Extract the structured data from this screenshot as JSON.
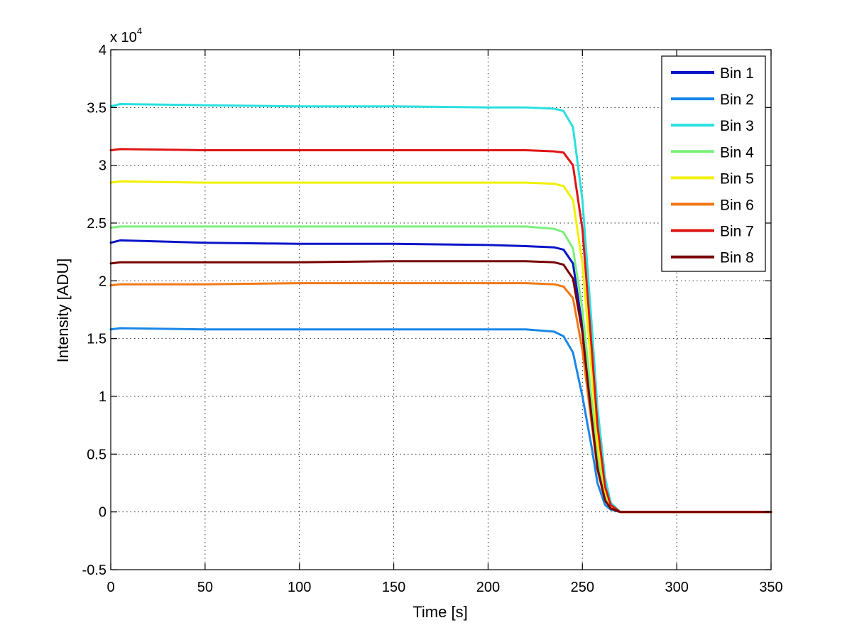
{
  "chart_data": {
    "type": "line",
    "title": "",
    "xlabel": "Time [s]",
    "ylabel": "Intensity [ADU]",
    "y_multiplier": "x 10",
    "y_multiplier_exponent": "4",
    "xlim": [
      0,
      350
    ],
    "ylim": [
      -0.5,
      4
    ],
    "xticks": [
      0,
      50,
      100,
      150,
      200,
      250,
      300,
      350
    ],
    "yticks": [
      -0.5,
      0,
      0.5,
      1,
      1.5,
      2,
      2.5,
      3,
      3.5,
      4
    ],
    "xtick_labels": [
      "0",
      "50",
      "100",
      "150",
      "200",
      "250",
      "300",
      "350"
    ],
    "ytick_labels": [
      "-0.5",
      "0",
      "0.5",
      "1",
      "1.5",
      "2",
      "2.5",
      "3",
      "3.5",
      "4"
    ],
    "grid": true,
    "legend_position": "top-right",
    "x": [
      0,
      5,
      50,
      100,
      150,
      200,
      220,
      235,
      240,
      245,
      250,
      255,
      258,
      262,
      265,
      270,
      300,
      350
    ],
    "series": [
      {
        "name": "Bin 1",
        "color": "#0a14c8",
        "values": [
          2.33,
          2.35,
          2.33,
          2.32,
          2.32,
          2.31,
          2.3,
          2.29,
          2.27,
          2.15,
          1.6,
          0.8,
          0.4,
          0.12,
          0.03,
          0.0,
          0.0,
          0.0
        ]
      },
      {
        "name": "Bin 2",
        "color": "#1a86e8",
        "values": [
          1.58,
          1.59,
          1.58,
          1.58,
          1.58,
          1.58,
          1.58,
          1.56,
          1.52,
          1.38,
          1.0,
          0.55,
          0.25,
          0.06,
          0.02,
          0.0,
          0.0,
          0.0
        ]
      },
      {
        "name": "Bin 3",
        "color": "#2ae0e0",
        "values": [
          3.51,
          3.53,
          3.52,
          3.51,
          3.51,
          3.5,
          3.5,
          3.49,
          3.47,
          3.33,
          2.7,
          1.6,
          0.9,
          0.3,
          0.08,
          0.0,
          0.0,
          0.0
        ]
      },
      {
        "name": "Bin 4",
        "color": "#7af07a",
        "values": [
          2.46,
          2.47,
          2.47,
          2.47,
          2.47,
          2.47,
          2.47,
          2.45,
          2.42,
          2.28,
          1.75,
          0.95,
          0.48,
          0.14,
          0.04,
          0.0,
          0.0,
          0.0
        ]
      },
      {
        "name": "Bin 5",
        "color": "#f0f000",
        "values": [
          2.85,
          2.86,
          2.85,
          2.85,
          2.85,
          2.85,
          2.85,
          2.84,
          2.82,
          2.7,
          2.15,
          1.2,
          0.6,
          0.18,
          0.05,
          0.0,
          0.0,
          0.0
        ]
      },
      {
        "name": "Bin 6",
        "color": "#f07814",
        "values": [
          1.96,
          1.97,
          1.97,
          1.98,
          1.98,
          1.98,
          1.98,
          1.97,
          1.95,
          1.85,
          1.4,
          0.75,
          0.36,
          0.1,
          0.03,
          0.0,
          0.0,
          0.0
        ]
      },
      {
        "name": "Bin 7",
        "color": "#e01414",
        "values": [
          3.13,
          3.14,
          3.13,
          3.13,
          3.13,
          3.13,
          3.13,
          3.12,
          3.11,
          3.0,
          2.45,
          1.4,
          0.75,
          0.22,
          0.06,
          0.0,
          0.0,
          0.0
        ]
      },
      {
        "name": "Bin 8",
        "color": "#780000",
        "values": [
          2.15,
          2.16,
          2.16,
          2.16,
          2.17,
          2.17,
          2.17,
          2.16,
          2.14,
          2.02,
          1.55,
          0.8,
          0.38,
          0.1,
          0.03,
          0.0,
          0.0,
          0.0
        ]
      }
    ]
  }
}
